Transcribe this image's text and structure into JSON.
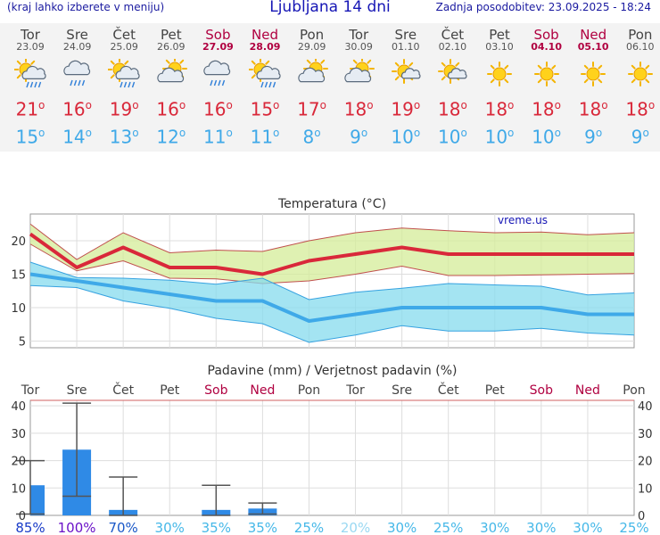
{
  "header": {
    "note": "(kraj lahko izberete v meniju)",
    "title": "Ljubljana 14 dni",
    "updated": "Zadnja posodobitev: 23.09.2025 - 18:24"
  },
  "days": [
    {
      "name": "Tor",
      "date": "23.09",
      "weekend": false,
      "icon": "sun-cloud-rain-icon",
      "max": "21",
      "min": "15"
    },
    {
      "name": "Sre",
      "date": "24.09",
      "weekend": false,
      "icon": "cloud-rain-icon",
      "max": "16",
      "min": "14"
    },
    {
      "name": "Čet",
      "date": "25.09",
      "weekend": false,
      "icon": "sun-cloud-rain-icon",
      "max": "19",
      "min": "13"
    },
    {
      "name": "Pet",
      "date": "26.09",
      "weekend": false,
      "icon": "sun-behind-cloud-icon",
      "max": "16",
      "min": "12"
    },
    {
      "name": "Sob",
      "date": "27.09",
      "weekend": true,
      "icon": "cloud-rain-icon",
      "max": "16",
      "min": "11"
    },
    {
      "name": "Ned",
      "date": "28.09",
      "weekend": true,
      "icon": "sun-cloud-rain-icon",
      "max": "15",
      "min": "11"
    },
    {
      "name": "Pon",
      "date": "29.09",
      "weekend": false,
      "icon": "sun-behind-cloud-icon",
      "max": "17",
      "min": "8"
    },
    {
      "name": "Tor",
      "date": "30.09",
      "weekend": false,
      "icon": "sun-behind-cloud-icon",
      "max": "18",
      "min": "9"
    },
    {
      "name": "Sre",
      "date": "01.10",
      "weekend": false,
      "icon": "sun-small-cloud-icon",
      "max": "19",
      "min": "10"
    },
    {
      "name": "Čet",
      "date": "02.10",
      "weekend": false,
      "icon": "sun-small-cloud-icon",
      "max": "18",
      "min": "10"
    },
    {
      "name": "Pet",
      "date": "03.10",
      "weekend": false,
      "icon": "sun-icon",
      "max": "18",
      "min": "10"
    },
    {
      "name": "Sob",
      "date": "04.10",
      "weekend": true,
      "icon": "sun-icon",
      "max": "18",
      "min": "10"
    },
    {
      "name": "Ned",
      "date": "05.10",
      "weekend": true,
      "icon": "sun-icon",
      "max": "18",
      "min": "9"
    },
    {
      "name": "Pon",
      "date": "06.10",
      "weekend": false,
      "icon": "sun-icon",
      "max": "18",
      "min": "9"
    }
  ],
  "degree_symbol": "o",
  "colors": {
    "max": "#d9283a",
    "min": "#3fa9e8",
    "weekend": "#b00040",
    "bar": "#2f8ae6"
  },
  "chart_data": [
    {
      "type": "line",
      "title": "Temperatura (°C)",
      "watermark": "vreme.us",
      "ylim": [
        4,
        24
      ],
      "yticks": [
        5,
        10,
        15,
        20
      ],
      "grid": true,
      "series": [
        {
          "values": [
            21,
            16,
            19,
            16,
            16,
            15,
            17,
            18,
            19,
            18,
            18,
            18,
            18,
            18
          ]
        },
        {
          "values": [
            22.5,
            17.2,
            21.2,
            18.2,
            18.6,
            18.4,
            20.0,
            21.2,
            21.9,
            21.5,
            21.2,
            21.3,
            20.9,
            21.2
          ]
        },
        {
          "values": [
            19.5,
            15.5,
            17.0,
            14.4,
            14.3,
            13.6,
            14.0,
            15.0,
            16.2,
            14.8,
            14.8,
            14.9,
            15.0,
            15.1
          ]
        },
        {
          "values": [
            15,
            14,
            13,
            12,
            11,
            11,
            8,
            9,
            10,
            10,
            10,
            10,
            9,
            9
          ]
        },
        {
          "values": [
            16.8,
            14.5,
            14.4,
            14.1,
            13.5,
            14.4,
            11.2,
            12.3,
            12.9,
            13.6,
            13.4,
            13.2,
            11.9,
            12.2
          ]
        },
        {
          "values": [
            13.3,
            13.0,
            11.0,
            9.9,
            8.4,
            7.6,
            4.8,
            5.9,
            7.3,
            6.5,
            6.5,
            6.9,
            6.2,
            5.9
          ]
        }
      ]
    },
    {
      "type": "bar",
      "title": "Padavine (mm) / Verjetnost padavin (%)",
      "categories": [
        "Tor",
        "Sre",
        "Čet",
        "Pet",
        "Sob",
        "Ned",
        "Pon",
        "Tor",
        "Sre",
        "Čet",
        "Pet",
        "Sob",
        "Ned",
        "Pon"
      ],
      "weekend": [
        false,
        false,
        false,
        false,
        true,
        true,
        false,
        false,
        false,
        false,
        false,
        true,
        true,
        false
      ],
      "ylim": [
        0,
        42
      ],
      "yticks": [
        0,
        10,
        20,
        30,
        40
      ],
      "values": [
        11,
        24,
        2,
        0,
        2,
        2.5,
        0,
        0,
        0,
        0,
        0,
        0,
        0,
        0
      ],
      "range_low": [
        0.5,
        7,
        0,
        0,
        0,
        0.5,
        0,
        0,
        0,
        0,
        0,
        0,
        0,
        0
      ],
      "range_high": [
        20,
        41,
        14,
        0,
        11,
        4.5,
        0,
        0,
        0,
        0,
        0,
        0,
        0,
        0
      ],
      "probability": [
        "85%",
        "100%",
        "70%",
        "30%",
        "35%",
        "35%",
        "25%",
        "20%",
        "30%",
        "25%",
        "30%",
        "30%",
        "30%",
        "25%"
      ],
      "probability_colors": [
        "#1a3cc8",
        "#6a12c8",
        "#1a58c8",
        "#46b8e8",
        "#46b8e8",
        "#46b8e8",
        "#46b8e8",
        "#9ad8f2",
        "#46b8e8",
        "#46b8e8",
        "#46b8e8",
        "#46b8e8",
        "#46b8e8",
        "#46b8e8"
      ]
    }
  ]
}
